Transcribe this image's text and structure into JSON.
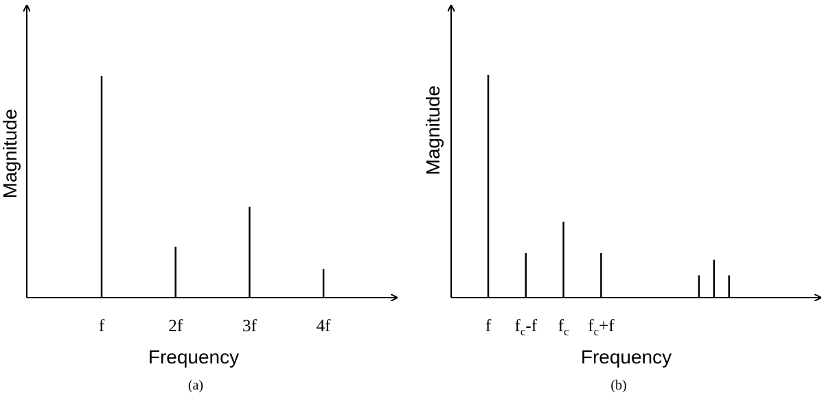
{
  "chart_data": [
    {
      "type": "bar",
      "panel_label": "(a)",
      "xlabel": "Frequency",
      "ylabel": "Magnitude",
      "ylim": [
        0,
        1
      ],
      "ticks": [
        {
          "label": "f",
          "sub": "",
          "suffix": ""
        },
        {
          "label": "2f",
          "sub": "",
          "suffix": ""
        },
        {
          "label": "3f",
          "sub": "",
          "suffix": ""
        },
        {
          "label": "4f",
          "sub": "",
          "suffix": ""
        }
      ],
      "lines": [
        {
          "x": 1,
          "value": 1.0
        },
        {
          "x": 2,
          "value": 0.23
        },
        {
          "x": 3,
          "value": 0.41
        },
        {
          "x": 4,
          "value": 0.13
        }
      ]
    },
    {
      "type": "bar",
      "panel_label": "(b)",
      "xlabel": "Frequency",
      "ylabel": "Magnitude",
      "ylim": [
        0,
        1
      ],
      "ticks": [
        {
          "label": "f",
          "sub": "",
          "suffix": ""
        },
        {
          "label": "f",
          "sub": "c",
          "suffix": "-f"
        },
        {
          "label": "f",
          "sub": "c",
          "suffix": ""
        },
        {
          "label": "f",
          "sub": "c",
          "suffix": "+f"
        }
      ],
      "lines": [
        {
          "x": 1,
          "value": 1.0
        },
        {
          "x": 2,
          "value": 0.2
        },
        {
          "x": 3,
          "value": 0.34
        },
        {
          "x": 4,
          "value": 0.2
        },
        {
          "x": 6.6,
          "value": 0.1
        },
        {
          "x": 7.0,
          "value": 0.17
        },
        {
          "x": 7.4,
          "value": 0.1
        }
      ]
    }
  ]
}
